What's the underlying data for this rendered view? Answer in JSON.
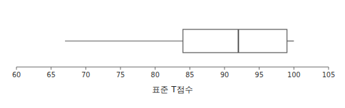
{
  "chart_data": {
    "type": "box",
    "xlabel": "표준 T점수",
    "whisker_low": 67,
    "q1": 84,
    "median": 92,
    "q3": 99,
    "whisker_high": 100,
    "xlim": [
      60,
      105
    ],
    "xticks": [
      60,
      65,
      70,
      75,
      80,
      85,
      90,
      95,
      100,
      105
    ],
    "color": "#555555"
  }
}
